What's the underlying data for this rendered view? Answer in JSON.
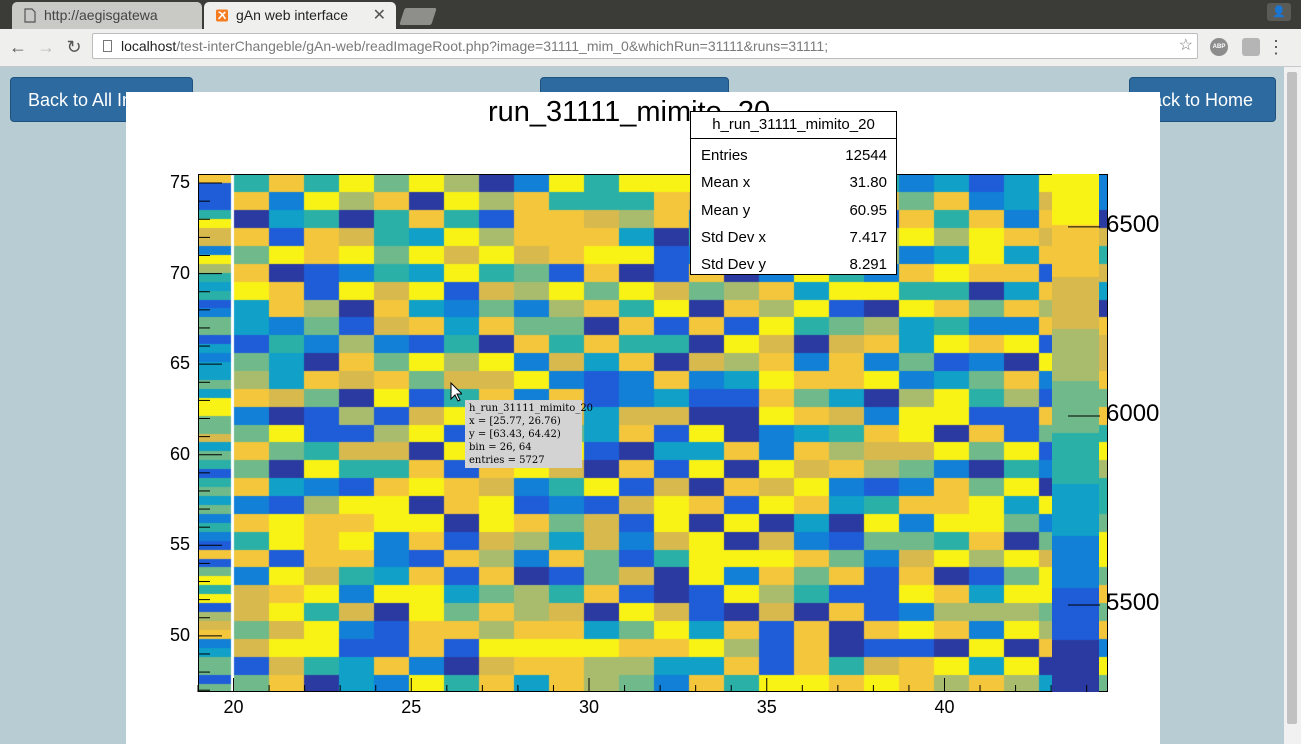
{
  "browser": {
    "tabs": [
      {
        "title": "http://aegisgatewa",
        "active": false
      },
      {
        "title": "gAn web interface",
        "active": true
      }
    ],
    "url_host": "localhost",
    "url_path": "/test-interChangeble/gAn-web/readImageRoot.php?image=31111_mim_0&whichRun=31111&runs=31111;",
    "extensions": [
      {
        "label": "ABP"
      }
    ]
  },
  "page": {
    "btn_back_all": "Back to All Images",
    "btn_center": "",
    "btn_home": "Back to Home"
  },
  "chart_data": {
    "type": "heatmap",
    "title": "run_31111_mimito_20",
    "x_ticks": [
      20,
      25,
      30,
      35,
      40
    ],
    "y_ticks": [
      50,
      55,
      60,
      65,
      70,
      75
    ],
    "z_ticks": [
      5500,
      6000,
      6500
    ],
    "xlim": [
      19,
      44.6
    ],
    "ylim": [
      46.9,
      75.5
    ],
    "zlim": [
      5270,
      6640
    ],
    "nx": 26,
    "ny": 29,
    "color_scale": [
      "#2b3aa0",
      "#1f5dd8",
      "#1180d6",
      "#10a0c8",
      "#2bb0a8",
      "#6fb98a",
      "#a9bc6e",
      "#d8b94e",
      "#f3c63b",
      "#f9f215"
    ],
    "stats": {
      "title": "h_run_31111_mimito_20",
      "rows": [
        {
          "label": "Entries",
          "value": "12544"
        },
        {
          "label": "Mean x",
          "value": "31.80"
        },
        {
          "label": "Mean y",
          "value": "60.95"
        },
        {
          "label": "Std Dev x",
          "value": "7.417"
        },
        {
          "label": "Std Dev y",
          "value": "8.291"
        }
      ]
    },
    "tooltip": {
      "name": "h_run_31111_mimito_20",
      "x": "x = [25.77, 26.76)",
      "y": "y = [63.43, 64.42)",
      "bin": "bin = 26, 64",
      "entries": "entries = 5727"
    }
  }
}
